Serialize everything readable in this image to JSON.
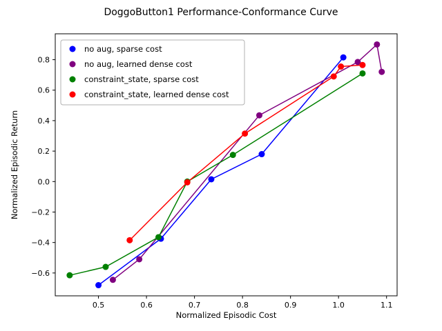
{
  "chart_data": {
    "type": "line",
    "title": "DoggoButton1 Performance-Conformance Curve",
    "xlabel": "Normalized Episodic Cost",
    "ylabel": "Normalized Episodic Return",
    "xlim": [
      0.41,
      1.122
    ],
    "ylim": [
      -0.75,
      0.97
    ],
    "x_ticks": [
      0.5,
      0.6,
      0.7,
      0.8,
      0.9,
      1.0,
      1.1
    ],
    "y_ticks": [
      -0.6,
      -0.4,
      -0.2,
      0.0,
      0.2,
      0.4,
      0.6,
      0.8
    ],
    "grid": false,
    "legend_position": "upper left",
    "marker": "circle",
    "series": [
      {
        "name": "no aug, sparse cost",
        "color": "#0000ff",
        "points": [
          [
            0.5,
            -0.68
          ],
          [
            0.63,
            -0.375
          ],
          [
            0.735,
            0.015
          ],
          [
            0.84,
            0.18
          ],
          [
            1.01,
            0.815
          ]
        ]
      },
      {
        "name": "no aug, learned dense cost",
        "color": "#800080",
        "points": [
          [
            0.53,
            -0.645
          ],
          [
            0.585,
            -0.51
          ],
          [
            0.835,
            0.435
          ],
          [
            1.04,
            0.785
          ],
          [
            1.08,
            0.9
          ],
          [
            1.09,
            0.72
          ]
        ]
      },
      {
        "name": "constraint_state, sparse cost",
        "color": "#008000",
        "points": [
          [
            0.44,
            -0.615
          ],
          [
            0.515,
            -0.56
          ],
          [
            0.625,
            -0.365
          ],
          [
            0.685,
            0.0
          ],
          [
            0.78,
            0.175
          ],
          [
            1.05,
            0.71
          ]
        ]
      },
      {
        "name": "constraint_state, learned dense cost",
        "color": "#ff0000",
        "points": [
          [
            0.565,
            -0.385
          ],
          [
            0.685,
            -0.005
          ],
          [
            0.805,
            0.315
          ],
          [
            0.99,
            0.69
          ],
          [
            1.005,
            0.755
          ],
          [
            1.05,
            0.765
          ]
        ]
      }
    ]
  }
}
